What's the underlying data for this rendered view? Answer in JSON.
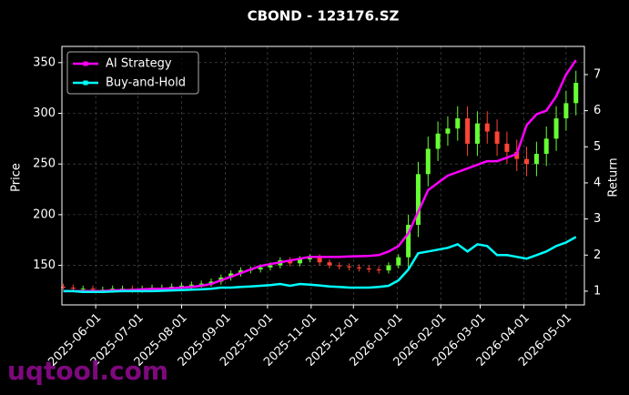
{
  "chart_data": {
    "type": "candlestick",
    "title": "CBOND - 123176.SZ",
    "ylabel": "Price",
    "y2label": "Return",
    "watermark": "uqtool.com",
    "x": [
      "2025-05-09",
      "2025-05-16",
      "2025-05-23",
      "2025-05-30",
      "2025-06-06",
      "2025-06-13",
      "2025-06-20",
      "2025-06-27",
      "2025-07-04",
      "2025-07-11",
      "2025-07-18",
      "2025-07-25",
      "2025-08-01",
      "2025-08-08",
      "2025-08-15",
      "2025-08-22",
      "2025-08-29",
      "2025-09-05",
      "2025-09-12",
      "2025-09-19",
      "2025-09-26",
      "2025-10-03",
      "2025-10-10",
      "2025-10-17",
      "2025-10-24",
      "2025-10-31",
      "2025-11-07",
      "2025-11-14",
      "2025-11-21",
      "2025-11-28",
      "2025-12-05",
      "2025-12-12",
      "2025-12-19",
      "2025-12-26",
      "2026-01-02",
      "2026-01-09",
      "2026-01-16",
      "2026-01-23",
      "2026-01-30",
      "2026-02-06",
      "2026-02-13",
      "2026-02-20",
      "2026-02-27",
      "2026-03-06",
      "2026-03-13",
      "2026-03-20",
      "2026-03-27",
      "2026-04-03",
      "2026-04-10",
      "2026-04-17",
      "2026-04-24",
      "2026-05-01",
      "2026-05-08"
    ],
    "open": [
      129,
      128,
      127,
      127,
      126,
      126,
      127,
      127,
      126,
      127,
      128,
      128,
      129,
      130,
      131,
      132,
      134,
      138,
      142,
      145,
      146,
      148,
      150,
      155,
      152,
      156,
      158,
      153,
      150,
      149,
      148,
      147,
      146,
      145,
      150,
      158,
      190,
      240,
      265,
      280,
      285,
      295,
      270,
      290,
      282,
      270,
      262,
      255,
      250,
      260,
      275,
      295,
      310
    ],
    "high": [
      132,
      131,
      130,
      130,
      129,
      130,
      130,
      130,
      130,
      131,
      131,
      132,
      133,
      134,
      135,
      137,
      141,
      145,
      148,
      149,
      151,
      153,
      158,
      158,
      159,
      161,
      161,
      156,
      153,
      152,
      151,
      150,
      149,
      153,
      161,
      200,
      252,
      277,
      292,
      297,
      307,
      307,
      302,
      302,
      294,
      282,
      274,
      267,
      272,
      287,
      307,
      322,
      342
    ],
    "low": [
      126,
      125,
      124,
      123,
      123,
      123,
      124,
      123,
      123,
      124,
      125,
      125,
      126,
      127,
      128,
      129,
      131,
      135,
      139,
      142,
      143,
      145,
      147,
      149,
      149,
      153,
      150,
      147,
      146,
      145,
      144,
      143,
      142,
      142,
      147,
      146,
      178,
      228,
      253,
      268,
      273,
      258,
      258,
      270,
      258,
      250,
      243,
      238,
      238,
      248,
      263,
      283,
      298
    ],
    "close": [
      128,
      127,
      127,
      126,
      126,
      127,
      127,
      126,
      127,
      128,
      128,
      129,
      130,
      131,
      132,
      134,
      138,
      142,
      145,
      146,
      148,
      150,
      155,
      152,
      156,
      158,
      153,
      150,
      149,
      148,
      147,
      146,
      145,
      150,
      158,
      190,
      240,
      265,
      280,
      285,
      295,
      270,
      290,
      282,
      270,
      262,
      255,
      250,
      260,
      275,
      295,
      310,
      330
    ],
    "up_color": "#66ff33",
    "down_color": "#ff4433",
    "series": [
      {
        "name": "AI Strategy",
        "color": "#ff00ff",
        "axis": "y2",
        "values": [
          1.0,
          1.0,
          1.0,
          1.0,
          1.0,
          1.02,
          1.03,
          1.03,
          1.05,
          1.06,
          1.07,
          1.08,
          1.1,
          1.12,
          1.15,
          1.2,
          1.3,
          1.4,
          1.5,
          1.6,
          1.7,
          1.75,
          1.8,
          1.85,
          1.9,
          1.95,
          1.95,
          1.95,
          1.95,
          1.96,
          1.97,
          1.98,
          2.0,
          2.1,
          2.25,
          2.6,
          3.2,
          3.8,
          4.0,
          4.2,
          4.3,
          4.4,
          4.5,
          4.6,
          4.6,
          4.7,
          4.8,
          5.6,
          5.9,
          6.0,
          6.4,
          7.0,
          7.4
        ]
      },
      {
        "name": "Buy-and-Hold",
        "color": "#00ffff",
        "axis": "y2",
        "values": [
          1.0,
          1.0,
          0.98,
          0.98,
          0.98,
          0.99,
          1.0,
          1.0,
          1.0,
          1.0,
          1.01,
          1.02,
          1.03,
          1.04,
          1.05,
          1.07,
          1.1,
          1.1,
          1.12,
          1.13,
          1.15,
          1.17,
          1.2,
          1.15,
          1.2,
          1.18,
          1.16,
          1.13,
          1.12,
          1.1,
          1.1,
          1.1,
          1.12,
          1.15,
          1.3,
          1.6,
          2.05,
          2.1,
          2.15,
          2.2,
          2.3,
          2.1,
          2.3,
          2.25,
          2.0,
          2.0,
          1.95,
          1.9,
          2.0,
          2.1,
          2.25,
          2.35,
          2.5
        ]
      }
    ],
    "xlim": [
      "2025-05-08",
      "2026-05-14"
    ],
    "xticks": [
      "2025-06-01",
      "2025-07-01",
      "2025-08-01",
      "2025-09-01",
      "2025-10-01",
      "2025-11-01",
      "2025-12-01",
      "2026-01-01",
      "2026-02-01",
      "2026-03-01",
      "2026-04-01",
      "2026-05-01"
    ],
    "ylim": [
      111,
      366
    ],
    "yticks": [
      150,
      200,
      250,
      300,
      350
    ],
    "y2lim": [
      0.62,
      7.78
    ],
    "y2ticks": [
      1,
      2,
      3,
      4,
      5,
      6,
      7
    ],
    "grid": true,
    "legend": "upper left"
  }
}
